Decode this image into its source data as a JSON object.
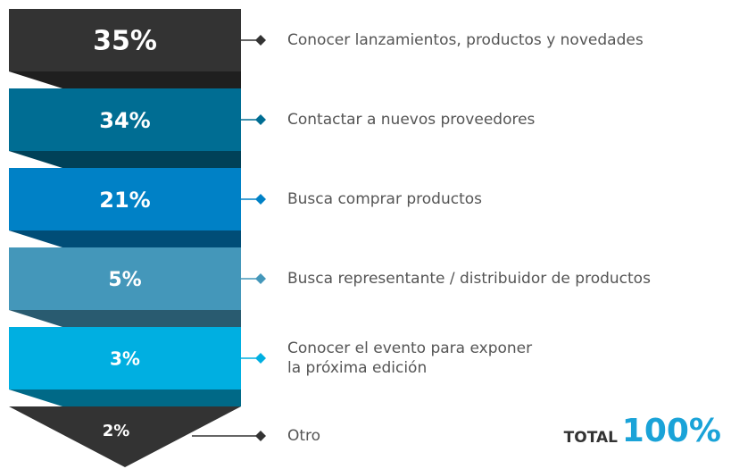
{
  "chart_data": {
    "type": "funnel",
    "categories": [
      "Conocer lanzamientos, productos y novedades",
      "Contactar a nuevos proveedores",
      "Busca comprar productos",
      "Busca representante / distribuidor de productos",
      [
        "Conocer el evento para exponer",
        "la próxima edición"
      ],
      "Otro"
    ],
    "values": [
      35,
      34,
      21,
      5,
      3,
      2
    ],
    "value_labels": [
      "35%",
      "34%",
      "21%",
      "5%",
      "3%",
      "2%"
    ],
    "colors": [
      "#333333",
      "#006d93",
      "#0081c6",
      "#4497ba",
      "#00afe1",
      "#333333"
    ],
    "total_label": "TOTAL",
    "total_value": 100,
    "total_value_label": "100%"
  }
}
